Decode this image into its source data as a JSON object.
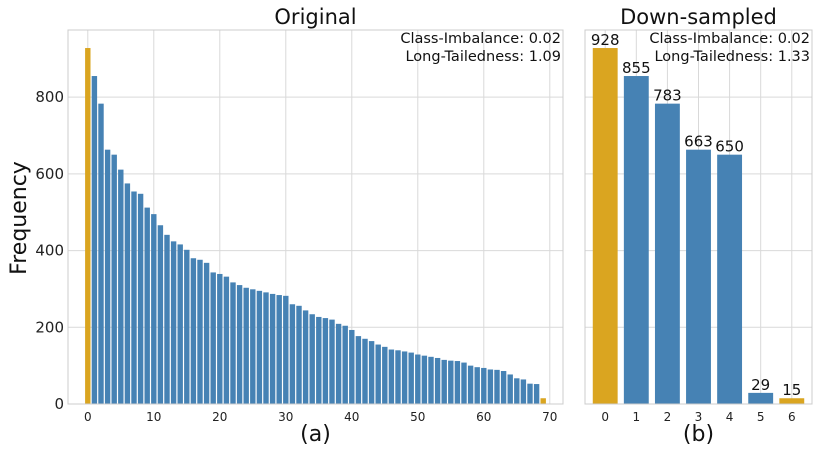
{
  "ylabel": "Frequency",
  "colors": {
    "head": "#DAA520",
    "body": "#4682B4",
    "grid": "#d9d9d9"
  },
  "chart_data": [
    {
      "type": "bar",
      "title": "Original",
      "sublabel": "(a)",
      "xlabel": "",
      "ylabel": "Frequency",
      "xlim": [
        -3,
        72
      ],
      "ylim": [
        0,
        975
      ],
      "xticks": [
        0,
        10,
        20,
        30,
        40,
        50,
        60,
        70
      ],
      "yticks": [
        0,
        200,
        400,
        600,
        800
      ],
      "grid": true,
      "annotation_lines": [
        "Class-Imbalance: 0.02",
        "Long-Tailedness: 1.09"
      ],
      "highlight_indices": [
        0,
        69
      ],
      "categories": [
        0,
        1,
        2,
        3,
        4,
        5,
        6,
        7,
        8,
        9,
        10,
        11,
        12,
        13,
        14,
        15,
        16,
        17,
        18,
        19,
        20,
        21,
        22,
        23,
        24,
        25,
        26,
        27,
        28,
        29,
        30,
        31,
        32,
        33,
        34,
        35,
        36,
        37,
        38,
        39,
        40,
        41,
        42,
        43,
        44,
        45,
        46,
        47,
        48,
        49,
        50,
        51,
        52,
        53,
        54,
        55,
        56,
        57,
        58,
        59,
        60,
        61,
        62,
        63,
        64,
        65,
        66,
        67,
        68,
        69
      ],
      "values": [
        928,
        855,
        783,
        663,
        650,
        611,
        575,
        554,
        548,
        512,
        495,
        466,
        441,
        424,
        416,
        402,
        380,
        376,
        368,
        343,
        339,
        332,
        317,
        310,
        303,
        299,
        295,
        291,
        287,
        284,
        282,
        260,
        256,
        244,
        234,
        227,
        224,
        220,
        209,
        204,
        193,
        177,
        170,
        164,
        155,
        149,
        142,
        140,
        137,
        134,
        129,
        126,
        123,
        120,
        115,
        113,
        112,
        108,
        100,
        96,
        94,
        90,
        89,
        86,
        77,
        67,
        64,
        53,
        52,
        15
      ]
    },
    {
      "type": "bar",
      "title": "Down-sampled",
      "sublabel": "(b)",
      "xlabel": "",
      "xlim": [
        -0.65,
        6.65
      ],
      "ylim": [
        0,
        975
      ],
      "xticks": [
        0,
        1,
        2,
        3,
        4,
        5,
        6
      ],
      "grid": true,
      "annotation_lines": [
        "Class-Imbalance: 0.02",
        "Long-Tailedness: 1.33"
      ],
      "highlight_indices": [
        0,
        6
      ],
      "categories": [
        0,
        1,
        2,
        3,
        4,
        5,
        6
      ],
      "values": [
        928,
        855,
        783,
        663,
        650,
        29,
        15
      ],
      "data_labels": [
        "928",
        "855",
        "783",
        "663",
        "650",
        "29",
        "15"
      ]
    }
  ]
}
